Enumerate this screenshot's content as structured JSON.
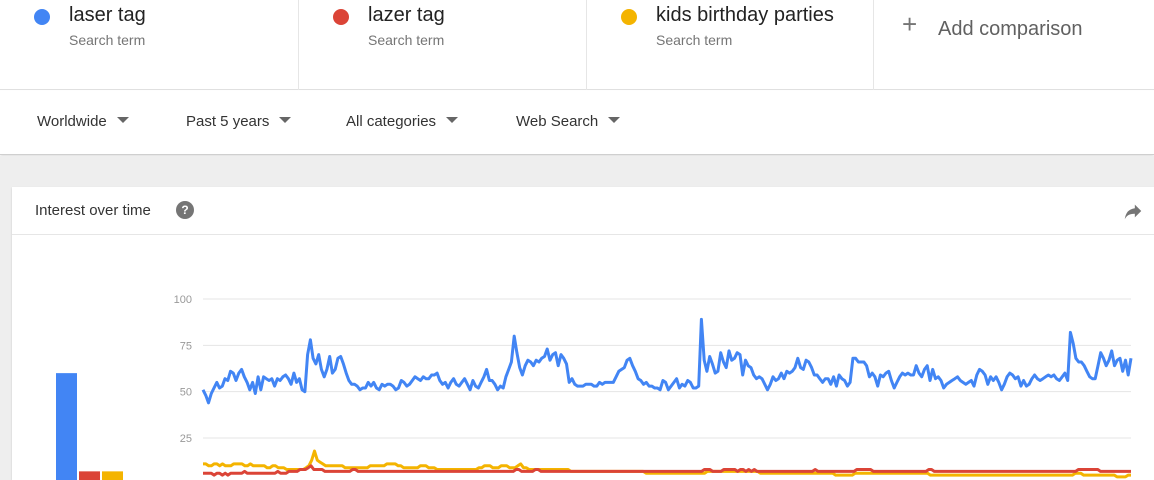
{
  "search_terms": [
    {
      "name": "laser tag",
      "sub": "Search term",
      "color": "#4285f4"
    },
    {
      "name": "lazer tag",
      "sub": "Search term",
      "color": "#db4437"
    },
    {
      "name": "kids birthday parties",
      "sub": "Search term",
      "color": "#f4b400"
    }
  ],
  "add_comparison": {
    "icon": "plus-icon",
    "label": "Add comparison"
  },
  "filters": [
    {
      "label": "Worldwide"
    },
    {
      "label": "Past 5 years"
    },
    {
      "label": "All categories"
    },
    {
      "label": "Web Search"
    }
  ],
  "card": {
    "title": "Interest over time",
    "help_icon": "help-icon",
    "help_glyph": "?",
    "share_icon": "share-icon"
  },
  "chart_data": {
    "type": "line",
    "ylim": [
      0,
      100
    ],
    "yticks": [
      25,
      50,
      75,
      100
    ],
    "grid": true,
    "average_bars": [
      {
        "series": "laser tag",
        "value": 60
      },
      {
        "series": "lazer tag",
        "value": 7
      },
      {
        "series": "kids birthday parties",
        "value": 7
      }
    ],
    "series": [
      {
        "name": "laser tag",
        "color": "#4285f4",
        "values": [
          51,
          48,
          44,
          49,
          52,
          55,
          52,
          53,
          57,
          56,
          61,
          60,
          56,
          60,
          62,
          58,
          55,
          51,
          55,
          49,
          58,
          51,
          58,
          57,
          56,
          57,
          53,
          57,
          56,
          58,
          59,
          57,
          54,
          60,
          55,
          57,
          51,
          50,
          70,
          78,
          68,
          65,
          70,
          62,
          58,
          62,
          69,
          60,
          62,
          68,
          69,
          65,
          60,
          56,
          54,
          54,
          53,
          51,
          52,
          52,
          55,
          53,
          55,
          52,
          51,
          54,
          53,
          54,
          54,
          53,
          51,
          52,
          56,
          55,
          53,
          54,
          56,
          58,
          57,
          56,
          58,
          57,
          57,
          59,
          59,
          60,
          56,
          54,
          55,
          52,
          55,
          57,
          54,
          53,
          55,
          57,
          54,
          51,
          56,
          53,
          52,
          55,
          58,
          62,
          56,
          56,
          54,
          51,
          53,
          52,
          58,
          62,
          66,
          80,
          71,
          63,
          59,
          64,
          67,
          66,
          64,
          67,
          66,
          68,
          69,
          73,
          67,
          70,
          71,
          64,
          70,
          68,
          65,
          55,
          57,
          54,
          53,
          53,
          53,
          54,
          54,
          54,
          53,
          53,
          55,
          54,
          55,
          55,
          55,
          55,
          58,
          61,
          62,
          63,
          67,
          68,
          64,
          61,
          57,
          56,
          54,
          55,
          53,
          53,
          52,
          52,
          51,
          56,
          55,
          51,
          53,
          55,
          57,
          52,
          54,
          53,
          56,
          55,
          52,
          52,
          53,
          89,
          67,
          61,
          69,
          65,
          60,
          61,
          71,
          66,
          63,
          72,
          67,
          68,
          71,
          70,
          59,
          67,
          64,
          63,
          59,
          57,
          58,
          57,
          54,
          51,
          54,
          58,
          56,
          57,
          60,
          57,
          61,
          60,
          61,
          63,
          68,
          63,
          62,
          67,
          66,
          63,
          59,
          59,
          57,
          55,
          57,
          57,
          54,
          58,
          53,
          59,
          57,
          56,
          53,
          55,
          68,
          68,
          66,
          66,
          66,
          64,
          58,
          60,
          58,
          53,
          59,
          58,
          60,
          61,
          56,
          52,
          55,
          58,
          60,
          59,
          60,
          59,
          59,
          64,
          60,
          58,
          62,
          64,
          56,
          62,
          57,
          58,
          56,
          52,
          54,
          55,
          56,
          57,
          58,
          56,
          55,
          54,
          55,
          56,
          53,
          59,
          62,
          61,
          59,
          54,
          58,
          56,
          58,
          55,
          51,
          54,
          58,
          60,
          59,
          57,
          58,
          53,
          56,
          53,
          54,
          57,
          59,
          57,
          56,
          57,
          58,
          59,
          58,
          59,
          57,
          56,
          58,
          60,
          56,
          82,
          76,
          68,
          66,
          66,
          64,
          61,
          58,
          57,
          57,
          64,
          71,
          68,
          64,
          67,
          72,
          64,
          67,
          68,
          61,
          67,
          59,
          68
        ]
      },
      {
        "name": "lazer tag",
        "color": "#db4437",
        "values": [
          6,
          6,
          6,
          6,
          5,
          6,
          6,
          5,
          6,
          5,
          6,
          6,
          6,
          6,
          6,
          7,
          6,
          6,
          6,
          6,
          6,
          6,
          6,
          6,
          6,
          6,
          6,
          7,
          6,
          6,
          6,
          7,
          7,
          7,
          7,
          8,
          8,
          8,
          9,
          10,
          8,
          8,
          8,
          8,
          7,
          7,
          7,
          7,
          7,
          7,
          7,
          7,
          7,
          7,
          8,
          8,
          7,
          7,
          7,
          7,
          7,
          7,
          7,
          7,
          7,
          7,
          7,
          7,
          7,
          7,
          7,
          7,
          7,
          7,
          7,
          7,
          7,
          7,
          7,
          7,
          7,
          7,
          7,
          7,
          7,
          7,
          7,
          7,
          7,
          7,
          7,
          7,
          7,
          7,
          7,
          7,
          7,
          7,
          7,
          7,
          7,
          7,
          7,
          7,
          7,
          7,
          7,
          7,
          7,
          7,
          7,
          7,
          7,
          8,
          8,
          7,
          7,
          7,
          7,
          7,
          8,
          8,
          7,
          7,
          7,
          7,
          7,
          7,
          7,
          7,
          7,
          7,
          7,
          7,
          7,
          7,
          7,
          7,
          7,
          7,
          7,
          7,
          7,
          7,
          7,
          7,
          7,
          7,
          7,
          7,
          7,
          7,
          7,
          7,
          7,
          7,
          7,
          7,
          7,
          7,
          7,
          7,
          7,
          7,
          7,
          7,
          7,
          7,
          7,
          7,
          7,
          7,
          7,
          7,
          7,
          7,
          7,
          7,
          7,
          7,
          7,
          8,
          8,
          8,
          7,
          7,
          7,
          7,
          8,
          8,
          8,
          8,
          8,
          7,
          8,
          8,
          7,
          8,
          7,
          8,
          7,
          7,
          7,
          7,
          7,
          7,
          7,
          7,
          7,
          7,
          7,
          7,
          7,
          7,
          7,
          7,
          7,
          7,
          7,
          7,
          7,
          8,
          7,
          7,
          7,
          7,
          7,
          7,
          7,
          7,
          7,
          7,
          7,
          7,
          7,
          7,
          8,
          8,
          8,
          8,
          8,
          8,
          7,
          7,
          7,
          7,
          7,
          7,
          7,
          7,
          7,
          7,
          7,
          7,
          7,
          7,
          7,
          7,
          7,
          7,
          7,
          7,
          8,
          8,
          7,
          7,
          7,
          7,
          7,
          7,
          7,
          7,
          7,
          7,
          7,
          7,
          7,
          7,
          7,
          7,
          7,
          7,
          7,
          7,
          7,
          7,
          7,
          7,
          7,
          7,
          7,
          7,
          7,
          7,
          7,
          7,
          7,
          7,
          7,
          7,
          7,
          7,
          7,
          7,
          7,
          7,
          7,
          7,
          7,
          7,
          7,
          7,
          7,
          7,
          7,
          7,
          8,
          8,
          8,
          8,
          8,
          8,
          8,
          8,
          7,
          7,
          7,
          7,
          7,
          7,
          7,
          7,
          7,
          7,
          7,
          7
        ]
      },
      {
        "name": "kids birthday parties",
        "color": "#f4b400",
        "values": [
          11,
          11,
          10,
          10,
          11,
          11,
          10,
          11,
          10,
          10,
          10,
          11,
          11,
          11,
          11,
          10,
          10,
          11,
          10,
          10,
          10,
          10,
          10,
          9,
          9,
          10,
          10,
          9,
          9,
          9,
          8,
          8,
          8,
          8,
          8,
          8,
          8,
          9,
          10,
          13,
          18,
          13,
          12,
          11,
          10,
          10,
          10,
          10,
          10,
          10,
          10,
          9,
          9,
          9,
          9,
          9,
          9,
          9,
          9,
          9,
          10,
          10,
          10,
          10,
          10,
          10,
          11,
          11,
          11,
          11,
          10,
          10,
          9,
          9,
          9,
          9,
          9,
          9,
          10,
          10,
          10,
          9,
          9,
          9,
          8,
          8,
          8,
          8,
          8,
          8,
          8,
          8,
          8,
          8,
          8,
          8,
          8,
          8,
          8,
          9,
          9,
          10,
          10,
          10,
          9,
          9,
          9,
          10,
          10,
          10,
          9,
          9,
          9,
          10,
          11,
          9,
          9,
          8,
          8,
          8,
          8,
          8,
          8,
          8,
          8,
          8,
          8,
          8,
          8,
          8,
          8,
          8,
          7,
          7,
          7,
          7,
          7,
          7,
          7,
          7,
          7,
          7,
          7,
          7,
          7,
          7,
          7,
          7,
          7,
          7,
          7,
          7,
          7,
          7,
          7,
          7,
          7,
          7,
          7,
          6,
          6,
          6,
          6,
          6,
          6,
          6,
          6,
          6,
          6,
          6,
          6,
          6,
          6,
          6,
          6,
          6,
          6,
          6,
          6,
          6,
          6,
          7,
          7,
          7,
          7,
          7,
          7,
          7,
          7,
          7,
          7,
          7,
          7,
          7,
          7,
          7,
          7,
          7,
          7,
          7,
          6,
          6,
          6,
          6,
          6,
          6,
          6,
          6,
          6,
          6,
          6,
          6,
          6,
          6,
          6,
          6,
          6,
          6,
          6,
          6,
          6,
          6,
          6,
          6,
          6,
          6,
          6,
          5,
          5,
          5,
          5,
          5,
          5,
          5,
          6,
          6,
          6,
          6,
          6,
          6,
          6,
          6,
          6,
          6,
          6,
          6,
          6,
          6,
          6,
          6,
          6,
          6,
          6,
          6,
          6,
          6,
          6,
          6,
          6,
          6,
          6,
          5,
          5,
          5,
          5,
          5,
          5,
          5,
          5,
          5,
          5,
          5,
          5,
          5,
          5,
          5,
          5,
          5,
          5,
          5,
          5,
          5,
          5,
          5,
          5,
          5,
          5,
          5,
          5,
          5,
          5,
          5,
          5,
          5,
          5,
          5,
          5,
          5,
          5,
          5,
          5,
          5,
          5,
          5,
          5,
          5,
          5,
          5,
          5,
          5,
          5,
          5,
          5,
          6,
          6,
          6,
          5,
          5,
          5,
          5,
          5,
          5,
          5,
          5,
          5,
          5,
          5,
          5,
          4,
          4,
          4,
          4,
          5,
          5
        ]
      }
    ]
  }
}
